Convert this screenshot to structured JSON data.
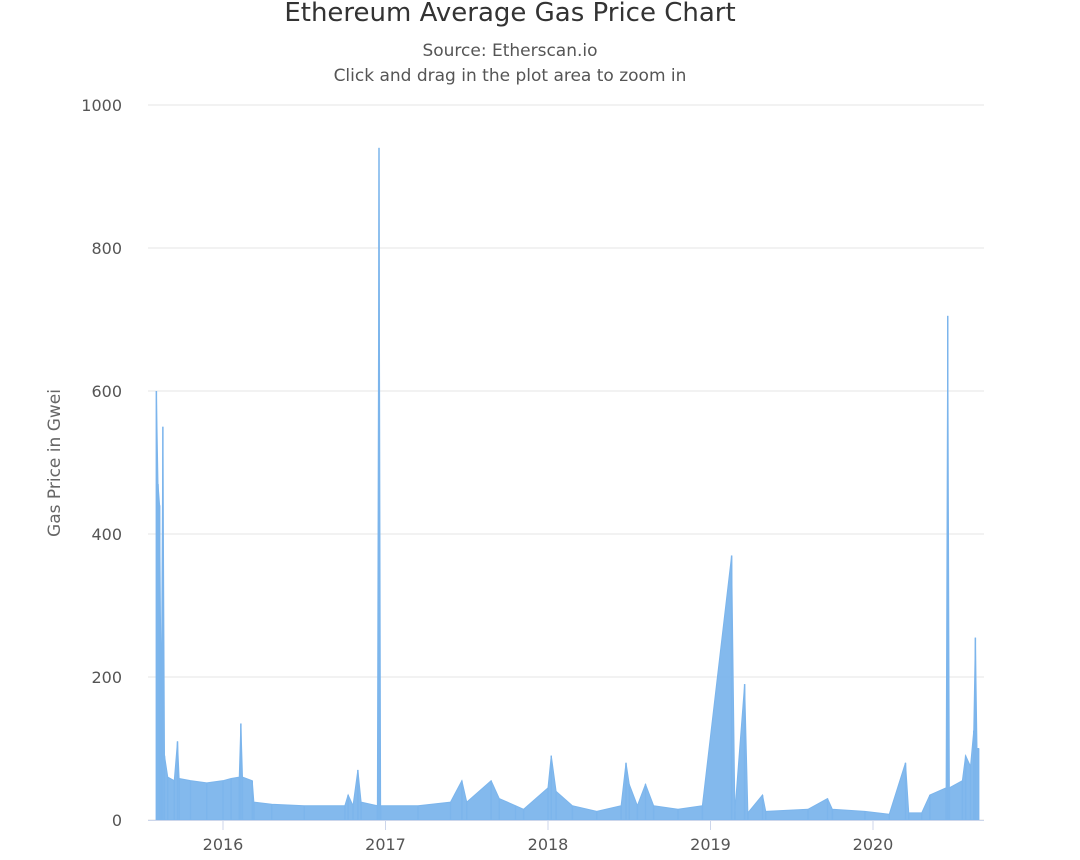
{
  "chart_data": {
    "type": "area",
    "title": "Ethereum Average Gas Price Chart",
    "subtitle": "Source: Etherscan.io",
    "subtitle2": "Click and drag in the plot area to zoom in",
    "xlabel": "",
    "ylabel": "Gas Price in Gwei",
    "ylim": [
      0,
      1000
    ],
    "xlim": [
      2015.55,
      2020.7
    ],
    "grid": true,
    "yticks": [
      "0",
      "200",
      "400",
      "600",
      "800",
      "1000"
    ],
    "xticks": [
      "2016",
      "2017",
      "2018",
      "2019",
      "2020"
    ],
    "color": "#7cb5ec",
    "series": [
      {
        "name": "Gas Price (Gwei)",
        "points": [
          [
            2015.59,
            600
          ],
          [
            2015.6,
            470
          ],
          [
            2015.61,
            440
          ],
          [
            2015.62,
            140
          ],
          [
            2015.63,
            550
          ],
          [
            2015.64,
            90
          ],
          [
            2015.66,
            60
          ],
          [
            2015.7,
            55
          ],
          [
            2015.72,
            110
          ],
          [
            2015.73,
            58
          ],
          [
            2015.8,
            55
          ],
          [
            2015.9,
            52
          ],
          [
            2016.0,
            55
          ],
          [
            2016.05,
            58
          ],
          [
            2016.1,
            60
          ],
          [
            2016.11,
            135
          ],
          [
            2016.12,
            60
          ],
          [
            2016.18,
            55
          ],
          [
            2016.19,
            25
          ],
          [
            2016.3,
            22
          ],
          [
            2016.5,
            20
          ],
          [
            2016.75,
            20
          ],
          [
            2016.77,
            35
          ],
          [
            2016.8,
            20
          ],
          [
            2016.83,
            70
          ],
          [
            2016.85,
            25
          ],
          [
            2016.95,
            20
          ],
          [
            2016.96,
            940
          ],
          [
            2016.97,
            20
          ],
          [
            2017.2,
            20
          ],
          [
            2017.4,
            25
          ],
          [
            2017.47,
            55
          ],
          [
            2017.5,
            25
          ],
          [
            2017.65,
            55
          ],
          [
            2017.7,
            30
          ],
          [
            2017.8,
            20
          ],
          [
            2017.85,
            15
          ],
          [
            2018.0,
            45
          ],
          [
            2018.02,
            90
          ],
          [
            2018.05,
            40
          ],
          [
            2018.15,
            20
          ],
          [
            2018.3,
            12
          ],
          [
            2018.45,
            20
          ],
          [
            2018.48,
            80
          ],
          [
            2018.5,
            50
          ],
          [
            2018.55,
            20
          ],
          [
            2018.6,
            50
          ],
          [
            2018.65,
            20
          ],
          [
            2018.8,
            15
          ],
          [
            2018.95,
            20
          ],
          [
            2019.13,
            370
          ],
          [
            2019.15,
            12
          ],
          [
            2019.21,
            190
          ],
          [
            2019.23,
            10
          ],
          [
            2019.32,
            35
          ],
          [
            2019.34,
            12
          ],
          [
            2019.6,
            15
          ],
          [
            2019.72,
            30
          ],
          [
            2019.75,
            15
          ],
          [
            2019.95,
            12
          ],
          [
            2020.1,
            8
          ],
          [
            2020.2,
            80
          ],
          [
            2020.22,
            10
          ],
          [
            2020.3,
            10
          ],
          [
            2020.35,
            35
          ],
          [
            2020.45,
            45
          ],
          [
            2020.46,
            705
          ],
          [
            2020.47,
            45
          ],
          [
            2020.55,
            55
          ],
          [
            2020.57,
            90
          ],
          [
            2020.6,
            75
          ],
          [
            2020.62,
            125
          ],
          [
            2020.63,
            255
          ],
          [
            2020.64,
            100
          ],
          [
            2020.65,
            100
          ]
        ]
      }
    ]
  }
}
